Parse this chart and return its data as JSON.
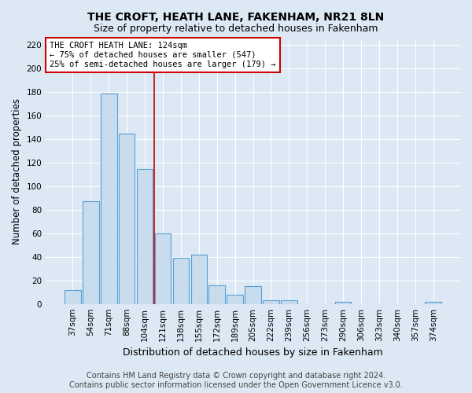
{
  "title": "THE CROFT, HEATH LANE, FAKENHAM, NR21 8LN",
  "subtitle": "Size of property relative to detached houses in Fakenham",
  "xlabel": "Distribution of detached houses by size in Fakenham",
  "ylabel": "Number of detached properties",
  "categories": [
    "37sqm",
    "54sqm",
    "71sqm",
    "88sqm",
    "104sqm",
    "121sqm",
    "138sqm",
    "155sqm",
    "172sqm",
    "189sqm",
    "205sqm",
    "222sqm",
    "239sqm",
    "256sqm",
    "273sqm",
    "290sqm",
    "306sqm",
    "323sqm",
    "340sqm",
    "357sqm",
    "374sqm"
  ],
  "values": [
    12,
    87,
    179,
    145,
    115,
    60,
    39,
    42,
    16,
    8,
    15,
    3,
    3,
    0,
    0,
    2,
    0,
    0,
    0,
    0,
    2
  ],
  "bar_color": "#c8dcee",
  "bar_edge_color": "#5a9fd4",
  "highlight_line_color": "#cc0000",
  "annotation_text": "THE CROFT HEATH LANE: 124sqm\n← 75% of detached houses are smaller (547)\n25% of semi-detached houses are larger (179) →",
  "annotation_box_color": "#ffffff",
  "annotation_box_edge_color": "#cc0000",
  "ylim": [
    0,
    225
  ],
  "yticks": [
    0,
    20,
    40,
    60,
    80,
    100,
    120,
    140,
    160,
    180,
    200,
    220
  ],
  "footer_line1": "Contains HM Land Registry data © Crown copyright and database right 2024.",
  "footer_line2": "Contains public sector information licensed under the Open Government Licence v3.0.",
  "background_color": "#dce8f4",
  "plot_bg_color": "#dce8f4",
  "title_fontsize": 10,
  "subtitle_fontsize": 9,
  "tick_fontsize": 7.5,
  "ylabel_fontsize": 8.5,
  "xlabel_fontsize": 9,
  "footer_fontsize": 7
}
